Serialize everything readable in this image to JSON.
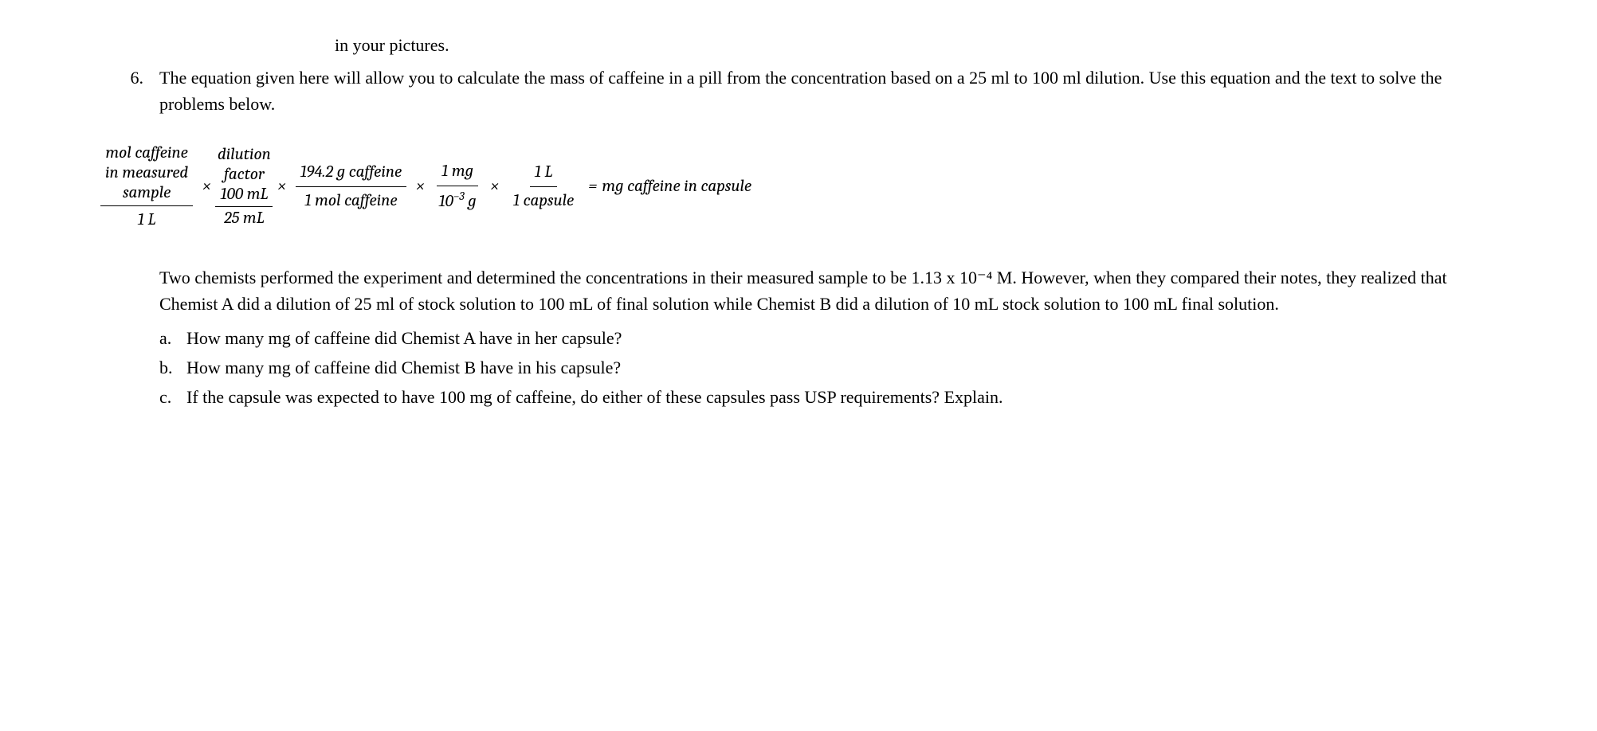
{
  "fragment_top": "in your pictures.",
  "item": {
    "number": "6.",
    "text": "The equation given here will allow you to calculate the mass of caffeine in a pill from the concentration based on a 25 ml to 100 ml dilution. Use this equation and the text to solve the problems below."
  },
  "equation": {
    "frac1": {
      "num_line1": "mol caffeine",
      "num_line2": "in measured",
      "num_line3": "sample",
      "den": "1 L"
    },
    "times": "×",
    "frac2": {
      "label_line1": "dilution",
      "label_line2": "factor",
      "num": "100 mL",
      "den": "25 mL"
    },
    "frac3": {
      "num": "194.2 g caffeine",
      "den": "1 mol caffeine"
    },
    "frac4": {
      "num": "1 mg",
      "den_base": "10",
      "den_exp": "−3",
      "den_unit": " g"
    },
    "frac5": {
      "num": "1 L",
      "den": "1 capsule"
    },
    "equals": "=",
    "result": "mg caffeine in capsule"
  },
  "paragraph": "Two chemists performed the experiment and determined the concentrations in their measured sample to be 1.13 x 10⁻⁴ M. However, when they compared their notes, they realized that Chemist A did a dilution of 25 ml of stock solution to 100 mL of final solution while Chemist B did a dilution of 10 mL stock solution to 100 mL final solution.",
  "subitems": {
    "a": {
      "letter": "a.",
      "text": "How many mg of caffeine did Chemist A have in her capsule?"
    },
    "b": {
      "letter": "b.",
      "text": "How many mg of caffeine did Chemist B have in his capsule?"
    },
    "c": {
      "letter": "c.",
      "text": "If the capsule was expected to have 100 mg of caffeine, do either of these capsules pass USP requirements? Explain."
    }
  }
}
